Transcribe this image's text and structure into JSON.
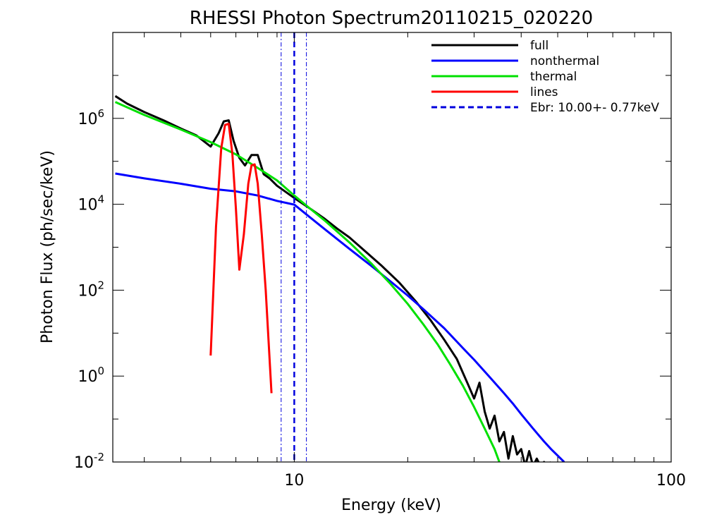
{
  "chart_data": {
    "type": "line",
    "title": "RHESSI Photon Spectrum20110215_020220",
    "xlabel": "Energy (keV)",
    "ylabel": "Photon Flux (ph/sec/keV)",
    "xscale": "log",
    "yscale": "log",
    "xlim": [
      3.3,
      100
    ],
    "ylim": [
      0.01,
      100000000
    ],
    "x_ticks": [
      {
        "value": 10,
        "label": "10"
      },
      {
        "value": 100,
        "label": "100"
      }
    ],
    "y_ticks": [
      {
        "value": 0.01,
        "base": "10",
        "exp": "-2"
      },
      {
        "value": 1,
        "base": "10",
        "exp": "0"
      },
      {
        "value": 100,
        "base": "10",
        "exp": "2"
      },
      {
        "value": 10000,
        "base": "10",
        "exp": "4"
      },
      {
        "value": 1000000,
        "base": "10",
        "exp": "6"
      }
    ],
    "grid": false,
    "legend_position": "top-right",
    "series": [
      {
        "name": "full",
        "color": "#000000",
        "style": "solid",
        "points": [
          [
            3.35,
            3300000.0
          ],
          [
            3.6,
            2200000.0
          ],
          [
            4.0,
            1400000.0
          ],
          [
            4.5,
            900000.0
          ],
          [
            5.0,
            580000.0
          ],
          [
            5.5,
            400000.0
          ],
          [
            6.0,
            220000.0
          ],
          [
            6.3,
            450000.0
          ],
          [
            6.5,
            850000.0
          ],
          [
            6.7,
            900000.0
          ],
          [
            6.9,
            300000.0
          ],
          [
            7.15,
            120000.0
          ],
          [
            7.4,
            80000.0
          ],
          [
            7.7,
            140000.0
          ],
          [
            8.0,
            140000.0
          ],
          [
            8.3,
            50000.0
          ],
          [
            8.6,
            40000.0
          ],
          [
            9.0,
            27000.0
          ],
          [
            10.0,
            14000.0
          ],
          [
            11.0,
            8000
          ],
          [
            12.0,
            4700
          ],
          [
            13.0,
            2700
          ],
          [
            14.0,
            1700
          ],
          [
            15.0,
            1000
          ],
          [
            17.0,
            380
          ],
          [
            19.0,
            150
          ],
          [
            21.0,
            55
          ],
          [
            23.0,
            20
          ],
          [
            25.0,
            7
          ],
          [
            27.0,
            2.5
          ],
          [
            28.0,
            1.2
          ],
          [
            29.0,
            0.6
          ],
          [
            30.0,
            0.3
          ],
          [
            31.0,
            0.7
          ],
          [
            32.0,
            0.15
          ],
          [
            33.0,
            0.06
          ],
          [
            34.0,
            0.12
          ],
          [
            35.0,
            0.03
          ],
          [
            36.0,
            0.05
          ],
          [
            37.0,
            0.012
          ],
          [
            38.0,
            0.04
          ],
          [
            39.0,
            0.015
          ],
          [
            40.0,
            0.02
          ],
          [
            41.0,
            0.008
          ],
          [
            42.0,
            0.018
          ],
          [
            43.0,
            0.008
          ],
          [
            44.0,
            0.012
          ],
          [
            45.0,
            0.008
          ],
          [
            46.0,
            0.01
          ],
          [
            47.0,
            0.008
          ],
          [
            48.0,
            0.01
          ]
        ]
      },
      {
        "name": "nonthermal",
        "color": "#0000ff",
        "style": "solid",
        "points": [
          [
            3.35,
            52000
          ],
          [
            4.0,
            40000
          ],
          [
            5.0,
            30000
          ],
          [
            6.0,
            23000
          ],
          [
            7.0,
            20000
          ],
          [
            8.0,
            16000
          ],
          [
            9.0,
            12000
          ],
          [
            10.0,
            9800
          ],
          [
            11.0,
            5000
          ],
          [
            12.0,
            2700
          ],
          [
            14.0,
            920
          ],
          [
            16.0,
            370
          ],
          [
            18.0,
            160
          ],
          [
            20.0,
            75
          ],
          [
            22.0,
            36
          ],
          [
            25.0,
            13
          ],
          [
            28.0,
            4.5
          ],
          [
            30.0,
            2.4
          ],
          [
            33.0,
            0.95
          ],
          [
            36.0,
            0.4
          ],
          [
            38.0,
            0.23
          ],
          [
            40.0,
            0.13
          ],
          [
            43.0,
            0.06
          ],
          [
            46.0,
            0.03
          ],
          [
            48.0,
            0.02
          ],
          [
            52.0,
            0.01
          ]
        ]
      },
      {
        "name": "thermal",
        "color": "#00e000",
        "style": "solid",
        "points": [
          [
            3.35,
            2400000.0
          ],
          [
            4.0,
            1200000.0
          ],
          [
            5.0,
            550000.0
          ],
          [
            6.0,
            280000.0
          ],
          [
            7.0,
            145000.0
          ],
          [
            8.0,
            70000.0
          ],
          [
            9.0,
            36000.0
          ],
          [
            10.0,
            16000.0
          ],
          [
            11.0,
            8000
          ],
          [
            12.0,
            4300
          ],
          [
            14.0,
            1300
          ],
          [
            16.0,
            420
          ],
          [
            18.0,
            140
          ],
          [
            20.0,
            48
          ],
          [
            22.0,
            16
          ],
          [
            24.0,
            5.5
          ],
          [
            26.0,
            1.8
          ],
          [
            28.0,
            0.6
          ],
          [
            30.0,
            0.19
          ],
          [
            32.0,
            0.06
          ],
          [
            34.0,
            0.02
          ],
          [
            35.0,
            0.01
          ]
        ]
      },
      {
        "name": "lines",
        "color": "#ff0000",
        "style": "solid",
        "points": [
          [
            6.0,
            3
          ],
          [
            6.2,
            3000
          ],
          [
            6.4,
            200000.0
          ],
          [
            6.55,
            700000.0
          ],
          [
            6.7,
            750000.0
          ],
          [
            6.85,
            150000.0
          ],
          [
            7.0,
            8000
          ],
          [
            7.15,
            300
          ],
          [
            7.35,
            2000
          ],
          [
            7.55,
            30000.0
          ],
          [
            7.7,
            80000.0
          ],
          [
            7.85,
            85000.0
          ],
          [
            8.0,
            30000.0
          ],
          [
            8.2,
            2000
          ],
          [
            8.4,
            100
          ],
          [
            8.7,
            0.4
          ]
        ]
      },
      {
        "name": "Ebr: 10.00+- 0.77keV",
        "color": "#0000dd",
        "style": "dashed",
        "vline": 10.0,
        "band": [
          9.23,
          10.77
        ]
      }
    ]
  }
}
